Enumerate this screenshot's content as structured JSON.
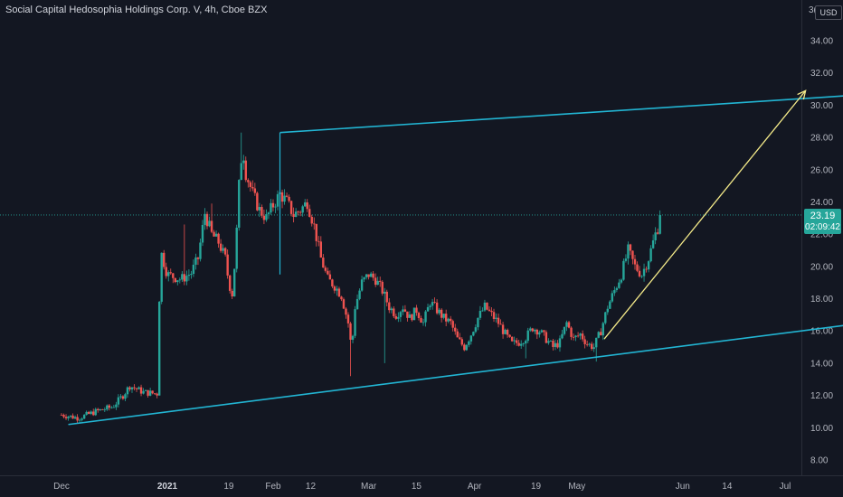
{
  "header": {
    "title": "Social Capital Hedosophia Holdings Corp. V, 4h, Cboe BZX",
    "currency_label": "USD",
    "currency_prefix": "3("
  },
  "price_tag": {
    "value": "23.19",
    "countdown": "02:09:42"
  },
  "colors": {
    "background": "#131722",
    "up": "#26a69a",
    "down": "#ef5350",
    "channel": "#22b5d3",
    "projection": "#f5eb8a",
    "price_line": "#26a69a"
  },
  "chart_data": {
    "type": "candlestick",
    "title": "Social Capital Hedosophia Holdings Corp. V, 4h, Cboe BZX",
    "ylim": [
      7.4,
      36.2
    ],
    "y_ticks": [
      "8.00",
      "10.00",
      "12.00",
      "14.00",
      "16.00",
      "18.00",
      "20.00",
      "22.00",
      "24.00",
      "26.00",
      "28.00",
      "30.00",
      "32.00",
      "34.00"
    ],
    "x_ticks": [
      {
        "label": "Dec",
        "day": 0
      },
      {
        "label": "2021",
        "day": 31,
        "bold": true
      },
      {
        "label": "19",
        "day": 49
      },
      {
        "label": "Feb",
        "day": 62
      },
      {
        "label": "12",
        "day": 73
      },
      {
        "label": "Mar",
        "day": 90
      },
      {
        "label": "15",
        "day": 104
      },
      {
        "label": "Apr",
        "day": 121
      },
      {
        "label": "19",
        "day": 139
      },
      {
        "label": "May",
        "day": 151
      },
      {
        "label": "Jun",
        "day": 182
      },
      {
        "label": "14",
        "day": 195
      },
      {
        "label": "Jul",
        "day": 212
      }
    ],
    "last_price": 23.19,
    "price_path": [
      [
        0,
        10.8
      ],
      [
        5,
        10.6
      ],
      [
        10,
        11.0
      ],
      [
        15,
        11.3
      ],
      [
        18,
        12.0
      ],
      [
        20,
        12.6
      ],
      [
        24,
        12.2
      ],
      [
        28,
        12.1
      ],
      [
        29,
        21.0
      ],
      [
        31,
        19.5
      ],
      [
        35,
        19.2
      ],
      [
        38,
        19.6
      ],
      [
        40,
        20.5
      ],
      [
        42,
        23.3
      ],
      [
        44,
        22.0
      ],
      [
        46,
        21.5
      ],
      [
        48,
        20.5
      ],
      [
        49,
        19.0
      ],
      [
        50,
        18.3
      ],
      [
        51,
        20.8
      ],
      [
        52,
        25.0
      ],
      [
        53,
        27.5
      ],
      [
        54,
        25.8
      ],
      [
        56,
        24.5
      ],
      [
        58,
        23.5
      ],
      [
        60,
        23.0
      ],
      [
        62,
        23.8
      ],
      [
        64,
        24.5
      ],
      [
        66,
        24.0
      ],
      [
        68,
        23.2
      ],
      [
        70,
        23.5
      ],
      [
        72,
        24.0
      ],
      [
        74,
        22.5
      ],
      [
        76,
        20.5
      ],
      [
        78,
        19.2
      ],
      [
        80,
        18.8
      ],
      [
        82,
        18.2
      ],
      [
        84,
        16.5
      ],
      [
        85,
        14.8
      ],
      [
        86,
        17.5
      ],
      [
        88,
        19.0
      ],
      [
        90,
        19.5
      ],
      [
        92,
        19.2
      ],
      [
        94,
        18.5
      ],
      [
        96,
        17.5
      ],
      [
        98,
        17.0
      ],
      [
        100,
        17.5
      ],
      [
        102,
        16.8
      ],
      [
        104,
        17.3
      ],
      [
        106,
        16.5
      ],
      [
        108,
        17.8
      ],
      [
        110,
        17.3
      ],
      [
        112,
        16.8
      ],
      [
        114,
        16.5
      ],
      [
        116,
        15.5
      ],
      [
        118,
        15.0
      ],
      [
        120,
        15.8
      ],
      [
        122,
        16.8
      ],
      [
        124,
        17.5
      ],
      [
        126,
        17.0
      ],
      [
        128,
        16.5
      ],
      [
        130,
        15.8
      ],
      [
        132,
        15.2
      ],
      [
        134,
        15.3
      ],
      [
        136,
        15.6
      ],
      [
        138,
        16.2
      ],
      [
        140,
        16.0
      ],
      [
        142,
        15.5
      ],
      [
        144,
        15.0
      ],
      [
        146,
        15.3
      ],
      [
        148,
        16.5
      ],
      [
        150,
        15.5
      ],
      [
        152,
        15.8
      ],
      [
        154,
        15.2
      ],
      [
        156,
        15.0
      ],
      [
        158,
        16.0
      ],
      [
        160,
        17.5
      ],
      [
        162,
        18.5
      ],
      [
        164,
        19.5
      ],
      [
        166,
        21.0
      ],
      [
        168,
        20.0
      ],
      [
        170,
        19.5
      ],
      [
        172,
        20.5
      ],
      [
        174,
        22.0
      ],
      [
        176,
        23.19
      ]
    ],
    "wicks": [
      {
        "day": 85,
        "low": 13.2
      },
      {
        "day": 95,
        "low": 14.0
      },
      {
        "day": 136,
        "low": 14.3
      },
      {
        "day": 157,
        "low": 14.1
      },
      {
        "day": 53,
        "high": 28.3
      },
      {
        "day": 36,
        "high": 22.6
      },
      {
        "day": 44,
        "high": 23.9
      }
    ],
    "annotations": {
      "upper_channel": [
        [
          64,
          28.3
        ],
        [
          64,
          28.3
        ],
        [
          253,
          30.9
        ]
      ],
      "lower_channel": [
        [
          2,
          10.2
        ],
        [
          250,
          16.9
        ]
      ],
      "projection_arrow": [
        [
          159,
          15.5
        ],
        [
          218,
          30.9
        ]
      ]
    }
  }
}
